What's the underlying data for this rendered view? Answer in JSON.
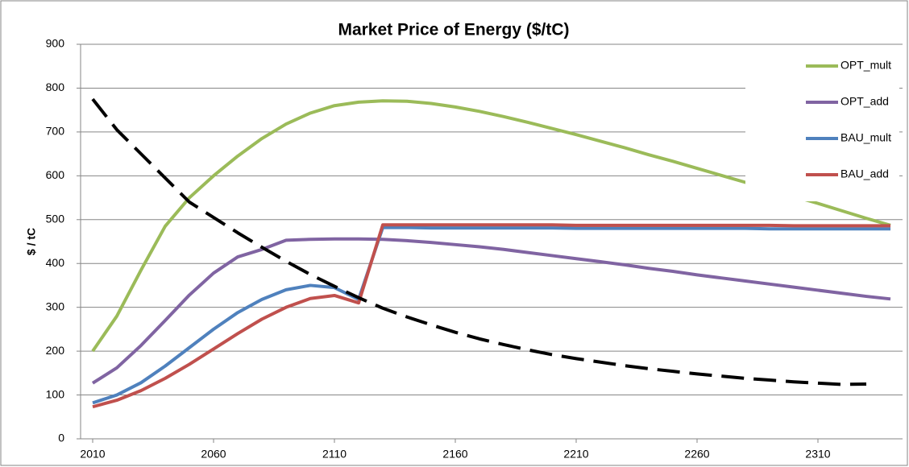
{
  "chart_data": {
    "type": "line",
    "title": "Market Price of Energy ($/tC)",
    "y_label": "$ / tC",
    "x": [
      2010,
      2020,
      2030,
      2040,
      2050,
      2060,
      2070,
      2080,
      2090,
      2100,
      2110,
      2120,
      2130,
      2140,
      2150,
      2160,
      2170,
      2180,
      2190,
      2200,
      2210,
      2220,
      2230,
      2240,
      2250,
      2260,
      2270,
      2280,
      2290,
      2300,
      2310,
      2320,
      2330,
      2340
    ],
    "xlim": [
      2005,
      2345
    ],
    "xticks": [
      2010,
      2060,
      2110,
      2160,
      2210,
      2260,
      2310
    ],
    "ylim": [
      0,
      900
    ],
    "yticks": [
      0,
      100,
      200,
      300,
      400,
      500,
      600,
      700,
      800,
      900
    ],
    "grid": true,
    "legend": "upper right",
    "series": [
      {
        "name": "OPT_mult",
        "color": "#9bbb59",
        "values": [
          200,
          280,
          385,
          485,
          550,
          600,
          645,
          685,
          718,
          743,
          760,
          768,
          771,
          770,
          765,
          757,
          747,
          735,
          722,
          708,
          694,
          679,
          664,
          648,
          633,
          617,
          601,
          585,
          569,
          553,
          537,
          520,
          503,
          487
        ]
      },
      {
        "name": "OPT_add",
        "color": "#8064a2",
        "values": [
          127,
          162,
          213,
          270,
          328,
          378,
          415,
          432,
          453,
          455,
          456,
          456,
          455,
          452,
          448,
          443,
          438,
          432,
          425,
          418,
          411,
          404,
          397,
          389,
          382,
          374,
          367,
          360,
          353,
          346,
          339,
          332,
          325,
          319
        ]
      },
      {
        "name": "BAU_mult",
        "color": "#4f81bd",
        "values": [
          82,
          100,
          128,
          166,
          208,
          250,
          288,
          318,
          340,
          350,
          345,
          318,
          482,
          482,
          481,
          481,
          481,
          481,
          481,
          481,
          480,
          480,
          480,
          480,
          480,
          480,
          480,
          480,
          479,
          479,
          479,
          479,
          479,
          479
        ]
      },
      {
        "name": "BAU_add",
        "color": "#c0504d",
        "values": [
          73,
          88,
          110,
          138,
          170,
          205,
          240,
          273,
          300,
          320,
          327,
          310,
          488,
          488,
          488,
          488,
          488,
          488,
          488,
          488,
          487,
          487,
          487,
          487,
          487,
          487,
          487,
          487,
          487,
          486,
          486,
          486,
          486,
          486
        ]
      },
      {
        "color": "#000000",
        "linestyle": "dashed",
        "values": [
          775,
          705,
          650,
          595,
          540,
          505,
          470,
          437,
          405,
          375,
          348,
          322,
          298,
          278,
          260,
          243,
          228,
          215,
          203,
          192,
          183,
          175,
          167,
          160,
          154,
          148,
          143,
          138,
          134,
          130,
          127,
          124,
          125,
          null
        ]
      }
    ]
  }
}
